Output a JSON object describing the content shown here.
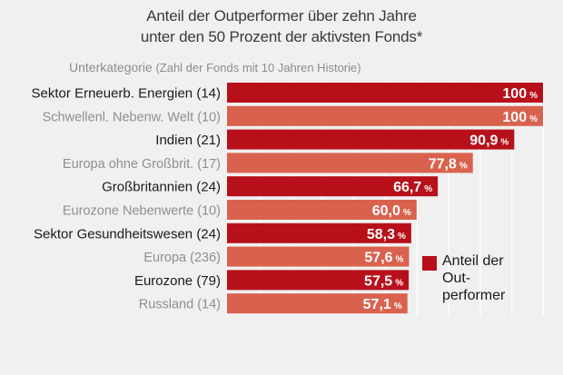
{
  "title_line_1": "Anteil der Outperformer über zehn Jahre",
  "title_line_2": "unter den 50 Prozent der aktivsten Fonds*",
  "subheader_main": "Unterkategorie",
  "subheader_note": " (Zahl der Fonds mit 10 Jahren Historie)",
  "legend_label": "Anteil der Out-performer",
  "colors": {
    "dark_bar": "#b8101a",
    "light_bar": "#d9624e",
    "gridline": "#ffffff",
    "background": "#f0f0f0"
  },
  "chart_data": {
    "type": "bar",
    "orientation": "horizontal",
    "title": "Anteil der Outperformer über zehn Jahre unter den 50 Prozent der aktivsten Fonds*",
    "xlim": [
      0,
      100
    ],
    "grid": true,
    "legend": "bottom-right",
    "unit": "%",
    "series": [
      {
        "name": "Anteil der Out-performer",
        "values": [
          100,
          100,
          90.9,
          77.8,
          66.7,
          60.0,
          58.3,
          57.6,
          57.5,
          57.1
        ]
      }
    ],
    "categories": [
      "Sektor Erneuerb. Energien (14)",
      "Schwellenl. Nebenw. Welt (10)",
      "Indien (21)",
      "Europa ohne Großbrit. (17)",
      "Großbritannien (24)",
      "Eurozone Nebenwerte (10)",
      "Sektor Gesundheitswesen (24)",
      "Europa (236)",
      "Eurozone (79)",
      "Russland (14)"
    ],
    "value_labels": [
      "100",
      "100",
      "90,9",
      "77,8",
      "66,7",
      "60,0",
      "58,3",
      "57,6",
      "57,5",
      "57,1"
    ],
    "percent_sign": "%"
  }
}
